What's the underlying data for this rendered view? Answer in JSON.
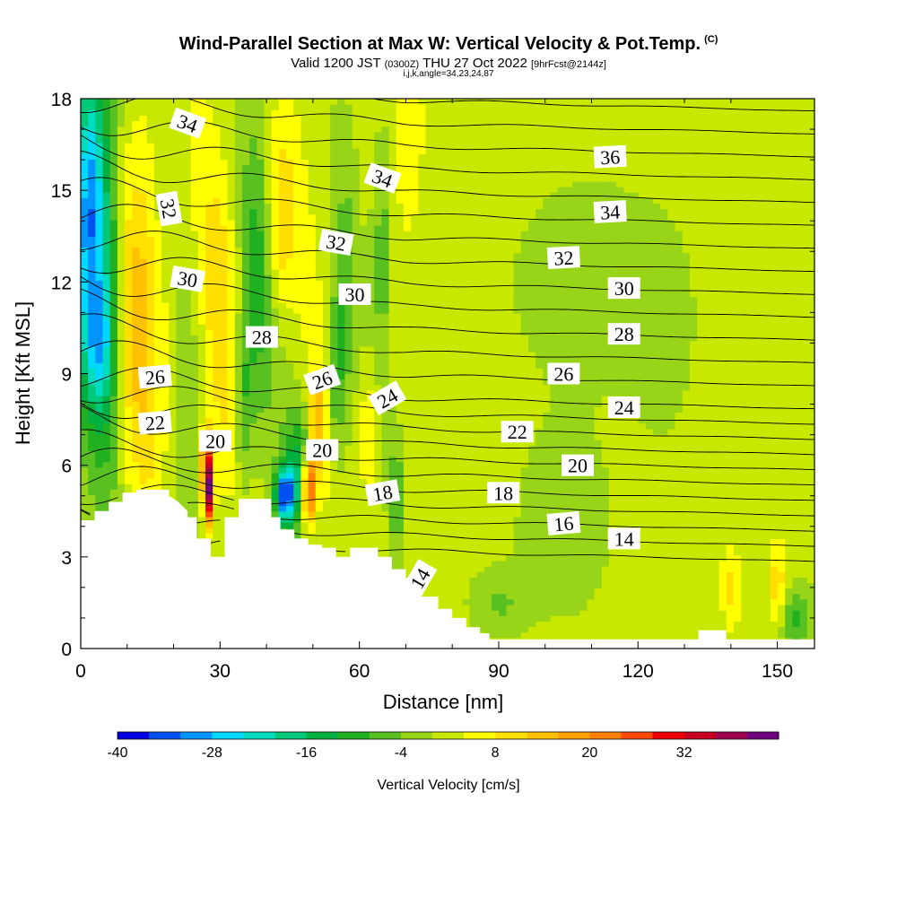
{
  "header": {
    "title": "Wind-Parallel Section at Max W: Vertical Velocity & Pot.Temp.",
    "title_units": "(C)",
    "subtitle_a": "Valid 1200 JST",
    "subtitle_b": "(0300Z)",
    "subtitle_c": "THU 27 Oct 2022",
    "subtitle_d": "[9hrFcst@2144z]",
    "subtitle2": "i,j,k,angle=34,23,24,87"
  },
  "chart_data": {
    "type": "heatmap",
    "xlabel": "Distance [nm]",
    "ylabel": "Height [Kft MSL]",
    "xlim": [
      0,
      158
    ],
    "ylim": [
      0,
      18
    ],
    "x_ticks": [
      "0",
      "30",
      "60",
      "90",
      "120",
      "150"
    ],
    "y_ticks": [
      "0",
      "3",
      "6",
      "9",
      "12",
      "15",
      "18"
    ],
    "fill_variable": "Vertical Velocity [cm/s]",
    "contour_variable": "Pot.Temp. (C)",
    "colorbar": {
      "label": "Vertical Velocity [cm/s]",
      "min": -40,
      "max": 44,
      "step": 4,
      "tick_labels": [
        "-40",
        "-28",
        "-16",
        "-4",
        "8",
        "20",
        "32"
      ],
      "colors": [
        "#0000e0",
        "#0050f0",
        "#0094ff",
        "#00d8ff",
        "#00dcc0",
        "#00c878",
        "#00b040",
        "#20b020",
        "#58c020",
        "#98d418",
        "#c8e800",
        "#ffff00",
        "#ffe000",
        "#ffc000",
        "#ffa000",
        "#ff8000",
        "#ff4800",
        "#ee0000",
        "#c80020",
        "#a00050",
        "#700080"
      ]
    },
    "contour_labels": [
      {
        "text": "34",
        "x": 23,
        "y": 17.2,
        "rot": 20
      },
      {
        "text": "36",
        "x": 114,
        "y": 16.1,
        "rot": -3
      },
      {
        "text": "34",
        "x": 65,
        "y": 15.4,
        "rot": 20
      },
      {
        "text": "32",
        "x": 19,
        "y": 14.4,
        "rot": 80
      },
      {
        "text": "34",
        "x": 114,
        "y": 14.3,
        "rot": -3
      },
      {
        "text": "32",
        "x": 55,
        "y": 13.3,
        "rot": 10
      },
      {
        "text": "32",
        "x": 104,
        "y": 12.8,
        "rot": -3
      },
      {
        "text": "30",
        "x": 23,
        "y": 12.1,
        "rot": 10
      },
      {
        "text": "30",
        "x": 59,
        "y": 11.6,
        "rot": 0
      },
      {
        "text": "30",
        "x": 117,
        "y": 11.8,
        "rot": 0
      },
      {
        "text": "28",
        "x": 39,
        "y": 10.2,
        "rot": 0
      },
      {
        "text": "28",
        "x": 117,
        "y": 10.3,
        "rot": 0
      },
      {
        "text": "26",
        "x": 16,
        "y": 8.9,
        "rot": -5
      },
      {
        "text": "26",
        "x": 52,
        "y": 8.8,
        "rot": -20
      },
      {
        "text": "26",
        "x": 104,
        "y": 9.0,
        "rot": 0
      },
      {
        "text": "24",
        "x": 66,
        "y": 8.2,
        "rot": -30
      },
      {
        "text": "24",
        "x": 117,
        "y": 7.9,
        "rot": 0
      },
      {
        "text": "22",
        "x": 16,
        "y": 7.4,
        "rot": -5
      },
      {
        "text": "22",
        "x": 94,
        "y": 7.1,
        "rot": 0
      },
      {
        "text": "20",
        "x": 29,
        "y": 6.8,
        "rot": 0
      },
      {
        "text": "20",
        "x": 52,
        "y": 6.5,
        "rot": 0
      },
      {
        "text": "20",
        "x": 107,
        "y": 6.0,
        "rot": 0
      },
      {
        "text": "18",
        "x": 65,
        "y": 5.1,
        "rot": -10
      },
      {
        "text": "18",
        "x": 91,
        "y": 5.1,
        "rot": 0
      },
      {
        "text": "16",
        "x": 104,
        "y": 4.1,
        "rot": -5
      },
      {
        "text": "14",
        "x": 117,
        "y": 3.6,
        "rot": 0
      },
      {
        "text": "14",
        "x": 73,
        "y": 2.3,
        "rot": -60
      }
    ],
    "contour_levels": [
      14,
      15,
      16,
      17,
      18,
      19,
      20,
      21,
      22,
      23,
      24,
      25,
      26,
      27,
      28,
      29,
      30,
      31,
      32,
      33,
      34,
      35,
      36,
      37
    ]
  }
}
